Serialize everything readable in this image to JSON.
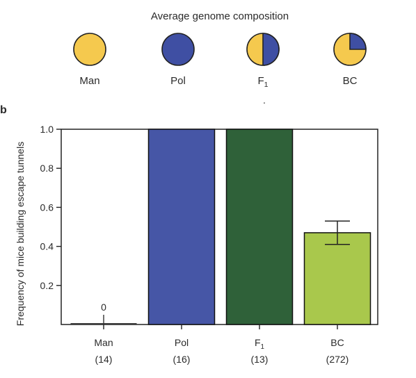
{
  "panel_b_label": "b",
  "genome": {
    "title": "Average genome composition",
    "colors": {
      "man": "#f5c94e",
      "pol": "#3f4fa3"
    },
    "items": [
      {
        "label": "Man",
        "sub": "",
        "pol_fraction": 0
      },
      {
        "label": "Pol",
        "sub": "",
        "pol_fraction": 1
      },
      {
        "label": "F",
        "sub": "1",
        "pol_fraction": 0.5
      },
      {
        "label": "BC",
        "sub": "",
        "pol_fraction": 0.25
      }
    ]
  },
  "chart_data": {
    "type": "bar",
    "ylabel": "Frequency of  mice building escape tunnels",
    "ylim": [
      0,
      1.0
    ],
    "yticks": [
      "0.2",
      "0.4",
      "0.6",
      "0.8",
      "1.0"
    ],
    "bars": [
      {
        "label": "Man",
        "sub": "",
        "n": "(14)",
        "value": 0,
        "color": "#3a3a3a",
        "value_label": "0"
      },
      {
        "label": "Pol",
        "sub": "",
        "n": "(16)",
        "value": 1.0,
        "color": "#4656a6",
        "value_label": ""
      },
      {
        "label": "F",
        "sub": "1",
        "n": "(13)",
        "value": 1.0,
        "color": "#2f6139",
        "value_label": ""
      },
      {
        "label": "BC",
        "sub": "",
        "n": "(272)",
        "value": 0.47,
        "error": 0.06,
        "color": "#a9c84c",
        "value_label": ""
      }
    ]
  }
}
